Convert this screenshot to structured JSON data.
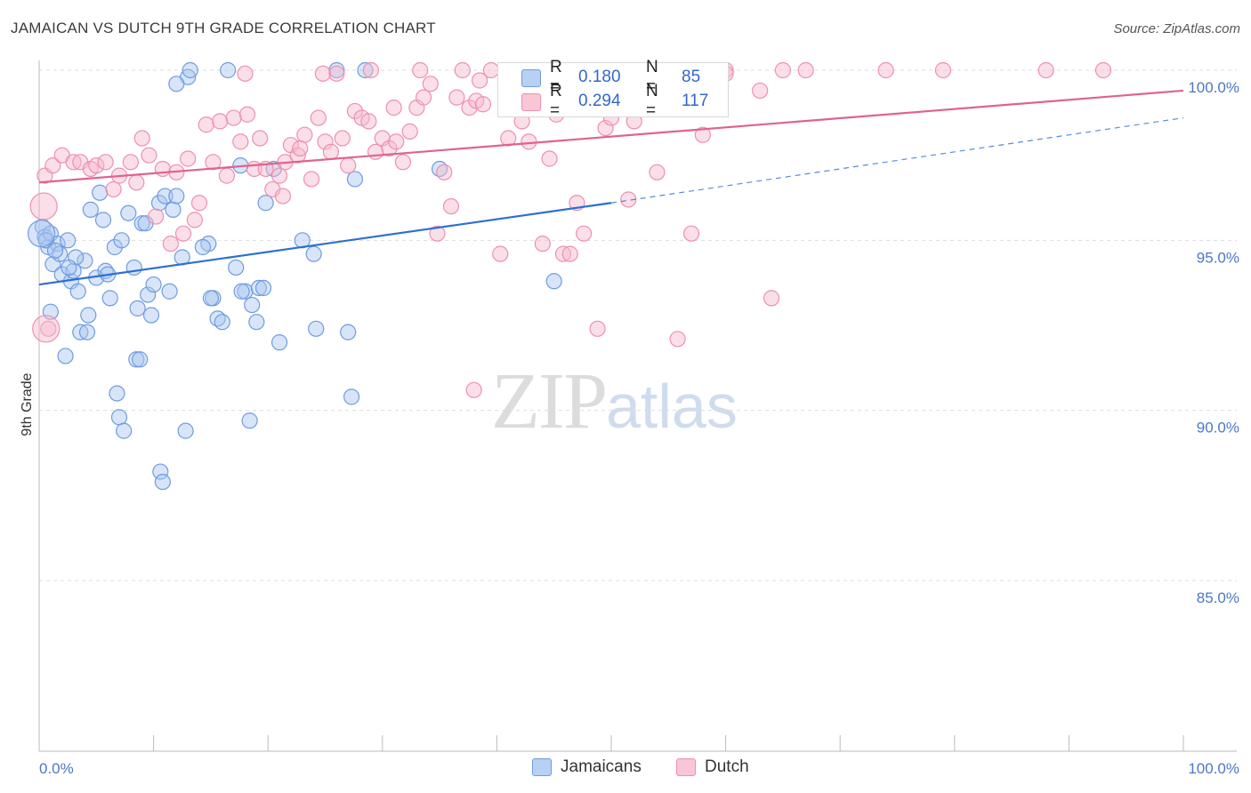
{
  "header": {
    "title": "JAMAICAN VS DUTCH 9TH GRADE CORRELATION CHART",
    "source": "Source: ZipAtlas.com"
  },
  "watermark": {
    "zip": "ZIP",
    "atlas": "atlas"
  },
  "legend": {
    "rows": [
      {
        "r_label": "R =",
        "r_value": "0.180",
        "n_label": "N =",
        "n_value": "85"
      },
      {
        "r_label": "R =",
        "r_value": "0.294",
        "n_label": "N =",
        "n_value": "117"
      }
    ]
  },
  "bottom_legend": {
    "jamaicans": "Jamaicans",
    "dutch": "Dutch"
  },
  "colors": {
    "jamaicans_fill": "#a9c6f0",
    "jamaicans_stroke": "#6f9be0",
    "jamaicans_line": "#2c6fd1",
    "dutch_fill": "#f6b8cb",
    "dutch_stroke": "#ee8fae",
    "dutch_line": "#e0628f",
    "grid": "#dddddd",
    "tick_text": "#4a78c8"
  },
  "chart_data": {
    "type": "scatter",
    "title": "JAMAICAN VS DUTCH 9TH GRADE CORRELATION CHART",
    "xlabel": "",
    "ylabel": "9th Grade",
    "xlim": [
      0,
      100
    ],
    "ylim": [
      80.5,
      100.8
    ],
    "x_tick_labels": [
      "0.0%",
      "100.0%"
    ],
    "y_ticks": [
      85,
      90,
      95,
      100
    ],
    "y_tick_labels": [
      "85.0%",
      "90.0%",
      "95.0%",
      "100.0%"
    ],
    "grid": true,
    "legend_placement": "top-center",
    "series": [
      {
        "name": "Jamaicans",
        "r": 0.18,
        "n": 85,
        "trend": {
          "x0": 0,
          "y0": 93.7,
          "x1": 50,
          "y1": 96.1,
          "dash_to_x": 100,
          "dash_to_y": 98.6
        },
        "points": [
          [
            0.3,
            95.4
          ],
          [
            0.5,
            95.1
          ],
          [
            0.8,
            94.8
          ],
          [
            1.0,
            95.2
          ],
          [
            1.2,
            94.3
          ],
          [
            1.6,
            94.9
          ],
          [
            1.8,
            94.6
          ],
          [
            2.0,
            94.0
          ],
          [
            2.5,
            95.0
          ],
          [
            2.8,
            93.8
          ],
          [
            3.0,
            94.1
          ],
          [
            3.4,
            93.5
          ],
          [
            3.6,
            92.3
          ],
          [
            4.0,
            94.4
          ],
          [
            4.3,
            92.8
          ],
          [
            4.5,
            95.9
          ],
          [
            5.0,
            93.9
          ],
          [
            5.3,
            96.4
          ],
          [
            5.6,
            95.6
          ],
          [
            6.2,
            93.3
          ],
          [
            6.6,
            94.8
          ],
          [
            7.2,
            95.0
          ],
          [
            7.8,
            95.8
          ],
          [
            8.3,
            94.2
          ],
          [
            8.6,
            93.0
          ],
          [
            9.0,
            95.5
          ],
          [
            9.5,
            93.4
          ],
          [
            9.8,
            92.8
          ],
          [
            10.0,
            93.7
          ],
          [
            10.5,
            96.1
          ],
          [
            11.0,
            96.3
          ],
          [
            11.4,
            93.5
          ],
          [
            11.7,
            95.9
          ],
          [
            12.0,
            96.3
          ],
          [
            12.5,
            94.5
          ],
          [
            13.0,
            99.8
          ],
          [
            13.2,
            100.0
          ],
          [
            12.0,
            99.6
          ],
          [
            14.8,
            94.9
          ],
          [
            15.2,
            93.3
          ],
          [
            15.6,
            92.7
          ],
          [
            16.0,
            92.6
          ],
          [
            17.2,
            94.2
          ],
          [
            17.6,
            97.2
          ],
          [
            18.0,
            93.5
          ],
          [
            18.6,
            93.1
          ],
          [
            19.0,
            92.6
          ],
          [
            19.2,
            93.6
          ],
          [
            19.8,
            96.1
          ],
          [
            20.5,
            97.1
          ],
          [
            21.0,
            92.0
          ],
          [
            23.0,
            95.0
          ],
          [
            24.0,
            94.6
          ],
          [
            24.2,
            92.4
          ],
          [
            26.0,
            100.0
          ],
          [
            27.0,
            92.3
          ],
          [
            27.6,
            96.8
          ],
          [
            28.5,
            100.0
          ],
          [
            35.0,
            97.1
          ],
          [
            45.0,
            93.8
          ],
          [
            1.0,
            92.9
          ],
          [
            2.3,
            91.6
          ],
          [
            4.2,
            92.3
          ],
          [
            5.8,
            94.1
          ],
          [
            6.8,
            90.5
          ],
          [
            7.0,
            89.8
          ],
          [
            7.4,
            89.4
          ],
          [
            8.5,
            91.5
          ],
          [
            8.8,
            91.5
          ],
          [
            10.6,
            88.2
          ],
          [
            10.8,
            87.9
          ],
          [
            12.8,
            89.4
          ],
          [
            15.0,
            93.3
          ],
          [
            16.5,
            100.0
          ],
          [
            17.7,
            93.5
          ],
          [
            18.4,
            89.7
          ],
          [
            27.3,
            90.4
          ],
          [
            6.0,
            94.0
          ],
          [
            3.2,
            94.5
          ],
          [
            2.6,
            94.2
          ],
          [
            19.6,
            93.6
          ],
          [
            14.3,
            94.8
          ],
          [
            9.3,
            95.5
          ],
          [
            0.6,
            95.0
          ],
          [
            1.4,
            94.7
          ]
        ]
      },
      {
        "name": "Dutch",
        "r": 0.294,
        "n": 117,
        "trend": {
          "x0": 0,
          "y0": 96.7,
          "x1": 100,
          "y1": 99.4
        },
        "points": [
          [
            0.5,
            96.9
          ],
          [
            0.8,
            92.4
          ],
          [
            1.2,
            97.2
          ],
          [
            2.0,
            97.5
          ],
          [
            3.0,
            97.3
          ],
          [
            3.6,
            97.3
          ],
          [
            4.5,
            97.1
          ],
          [
            5.0,
            97.2
          ],
          [
            5.8,
            97.3
          ],
          [
            6.5,
            96.5
          ],
          [
            7.0,
            96.9
          ],
          [
            8.0,
            97.3
          ],
          [
            8.5,
            96.7
          ],
          [
            9.0,
            98.0
          ],
          [
            9.6,
            97.5
          ],
          [
            10.2,
            95.7
          ],
          [
            10.8,
            97.1
          ],
          [
            11.5,
            94.9
          ],
          [
            12.0,
            97.0
          ],
          [
            12.6,
            95.2
          ],
          [
            13.0,
            97.4
          ],
          [
            13.6,
            95.6
          ],
          [
            14.0,
            96.1
          ],
          [
            14.6,
            98.4
          ],
          [
            15.2,
            97.3
          ],
          [
            15.8,
            98.5
          ],
          [
            16.4,
            96.9
          ],
          [
            17.0,
            98.6
          ],
          [
            17.6,
            97.9
          ],
          [
            18.2,
            98.7
          ],
          [
            18.8,
            97.1
          ],
          [
            19.3,
            98.0
          ],
          [
            19.8,
            97.1
          ],
          [
            20.4,
            96.5
          ],
          [
            21.0,
            96.9
          ],
          [
            21.5,
            97.3
          ],
          [
            22.0,
            97.8
          ],
          [
            22.6,
            97.5
          ],
          [
            23.2,
            98.1
          ],
          [
            23.8,
            96.8
          ],
          [
            24.4,
            98.6
          ],
          [
            25.0,
            97.9
          ],
          [
            25.5,
            97.6
          ],
          [
            26.0,
            99.9
          ],
          [
            26.5,
            98.0
          ],
          [
            27.0,
            97.2
          ],
          [
            27.6,
            98.8
          ],
          [
            28.2,
            98.6
          ],
          [
            28.8,
            98.5
          ],
          [
            29.4,
            97.6
          ],
          [
            30.0,
            98.0
          ],
          [
            30.6,
            97.7
          ],
          [
            31.2,
            97.9
          ],
          [
            31.8,
            97.3
          ],
          [
            32.4,
            98.2
          ],
          [
            33.0,
            98.9
          ],
          [
            33.6,
            99.2
          ],
          [
            34.2,
            99.6
          ],
          [
            34.8,
            95.2
          ],
          [
            35.4,
            97.0
          ],
          [
            36.0,
            96.0
          ],
          [
            36.5,
            99.2
          ],
          [
            37.0,
            100.0
          ],
          [
            37.6,
            98.9
          ],
          [
            38.2,
            99.1
          ],
          [
            38.8,
            99.0
          ],
          [
            39.5,
            100.0
          ],
          [
            40.3,
            94.6
          ],
          [
            41.0,
            98.0
          ],
          [
            41.6,
            99.5
          ],
          [
            42.2,
            98.5
          ],
          [
            42.8,
            97.9
          ],
          [
            43.4,
            99.2
          ],
          [
            44.0,
            94.9
          ],
          [
            44.6,
            97.4
          ],
          [
            45.2,
            98.7
          ],
          [
            45.8,
            94.6
          ],
          [
            46.4,
            94.6
          ],
          [
            47.0,
            96.1
          ],
          [
            47.6,
            95.2
          ],
          [
            48.2,
            99.6
          ],
          [
            48.8,
            92.4
          ],
          [
            49.5,
            98.3
          ],
          [
            50.0,
            98.6
          ],
          [
            51.5,
            96.2
          ],
          [
            52.0,
            98.5
          ],
          [
            53.0,
            99.6
          ],
          [
            54.0,
            97.0
          ],
          [
            55.0,
            99.2
          ],
          [
            55.8,
            92.1
          ],
          [
            56.5,
            100.0
          ],
          [
            57.0,
            95.2
          ],
          [
            58.0,
            98.1
          ],
          [
            59.0,
            99.9
          ],
          [
            60.0,
            100.0
          ],
          [
            63.0,
            99.4
          ],
          [
            64.0,
            93.3
          ],
          [
            65.0,
            100.0
          ],
          [
            67.0,
            100.0
          ],
          [
            74.0,
            100.0
          ],
          [
            79.0,
            100.0
          ],
          [
            88.0,
            100.0
          ],
          [
            93.0,
            100.0
          ],
          [
            38.0,
            90.6
          ],
          [
            60.0,
            99.9
          ],
          [
            22.8,
            97.7
          ],
          [
            21.3,
            96.3
          ],
          [
            33.3,
            100.0
          ],
          [
            29.0,
            100.0
          ],
          [
            44.5,
            100.0
          ],
          [
            47.0,
            99.9
          ],
          [
            24.8,
            99.9
          ],
          [
            38.5,
            99.7
          ],
          [
            42.0,
            99.9
          ],
          [
            52.8,
            100.0
          ],
          [
            18.0,
            99.9
          ],
          [
            31.0,
            98.9
          ]
        ]
      }
    ]
  }
}
